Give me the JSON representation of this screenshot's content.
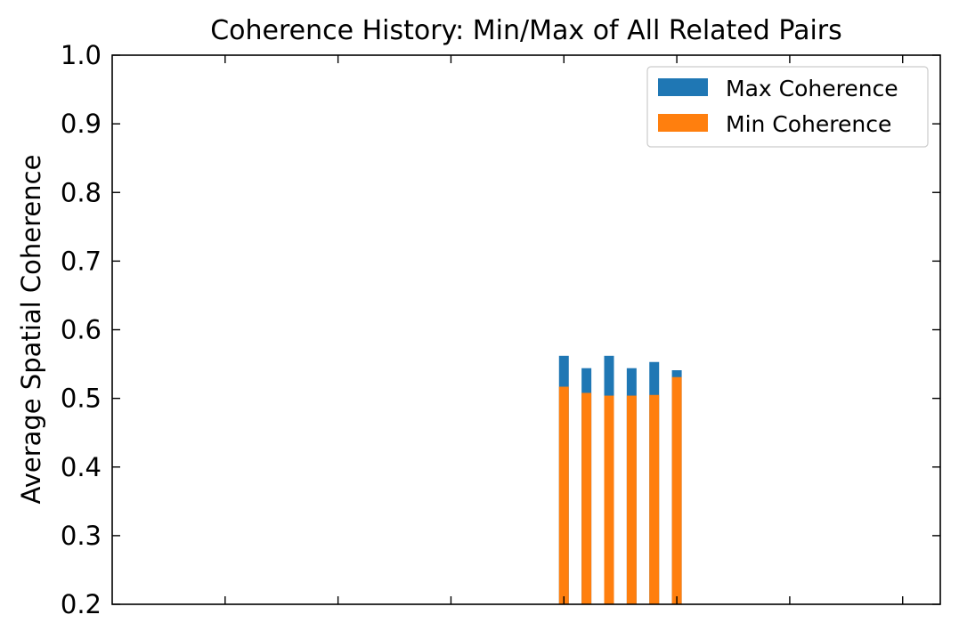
{
  "chart_data": {
    "type": "bar",
    "stacked_overlay": true,
    "title": "Coherence History: Min/Max of All Related Pairs",
    "xlabel": "",
    "ylabel": "Average Spatial Coherence",
    "ylim": [
      0.2,
      1.0
    ],
    "yticks": [
      "0.2",
      "0.3",
      "0.4",
      "0.5",
      "0.6",
      "0.7",
      "0.8",
      "0.9",
      "1.0"
    ],
    "xlim": [
      -6.5,
      4.5
    ],
    "xticks": [
      -5,
      -3.5,
      -2,
      -0.5,
      1,
      2.5,
      4
    ],
    "x": [
      -0.5,
      -0.2,
      0.1,
      0.4,
      0.7,
      1.0
    ],
    "series": [
      {
        "name": "Max Coherence",
        "color": "#1f77b4",
        "values": [
          0.562,
          0.544,
          0.562,
          0.544,
          0.553,
          0.541
        ]
      },
      {
        "name": "Min Coherence",
        "color": "#ff7f0e",
        "values": [
          0.517,
          0.508,
          0.504,
          0.504,
          0.505,
          0.531
        ]
      }
    ],
    "grid": false,
    "legend": "top-right"
  }
}
